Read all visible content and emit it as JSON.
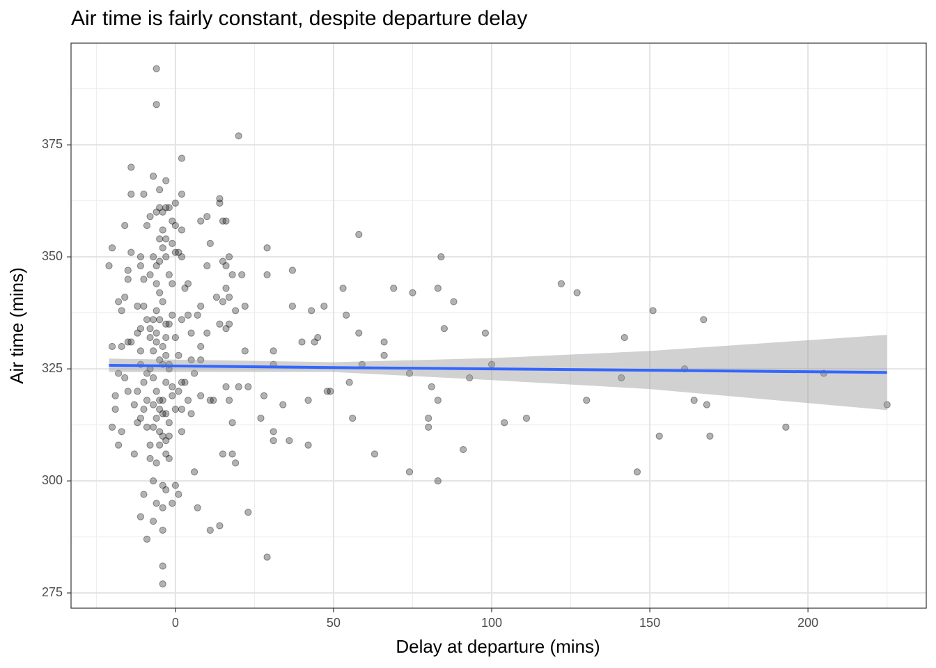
{
  "chart_data": {
    "type": "scatter",
    "title": "Air time is fairly constant, despite departure delay",
    "xlabel": "Delay at departure (mins)",
    "ylabel": "Air time (mins)",
    "color": "#000000",
    "x": [
      -6,
      -6,
      20,
      2,
      -14,
      -7,
      -3,
      -5,
      2,
      -14,
      -10,
      14,
      14,
      0,
      -5,
      -3,
      -4,
      -6,
      -2,
      15,
      16,
      8,
      10,
      -8,
      -1,
      0,
      2,
      -4,
      -16,
      -9,
      58,
      -5,
      -3,
      -4,
      -1,
      0,
      1,
      -20,
      29,
      11,
      -14,
      -7,
      -3,
      2,
      -11,
      -21,
      -5,
      17,
      15,
      16,
      10,
      -11,
      84,
      37,
      -15,
      18,
      29,
      21,
      -8,
      -15,
      -10,
      -6,
      -1,
      4,
      3,
      16,
      53,
      69,
      83,
      75,
      127,
      122,
      17,
      13,
      -16,
      -18,
      88,
      15,
      22,
      37,
      47,
      -12,
      8,
      19,
      43,
      151,
      -17,
      -1,
      54,
      4,
      7,
      -5,
      -9,
      2,
      167,
      -2,
      14,
      16,
      17,
      85,
      5,
      10,
      58,
      98,
      -12,
      -11,
      -6,
      142,
      45,
      -3,
      -8,
      44,
      -15,
      -14,
      40,
      66,
      -20,
      -17,
      8,
      22,
      31,
      -11,
      66,
      1,
      5,
      8,
      31,
      59,
      100,
      -4,
      -11,
      -2,
      161,
      -18,
      74,
      205,
      6,
      -16,
      93,
      141,
      -7,
      2,
      -10,
      55,
      -3,
      20,
      23,
      81,
      16,
      -1,
      -15,
      48,
      49,
      8,
      -19,
      28,
      -5,
      -9,
      11,
      42,
      83,
      130,
      164,
      12,
      17,
      34,
      -13,
      -7,
      168,
      225,
      -19,
      2,
      -4,
      27,
      56,
      80,
      111,
      104,
      18,
      -12,
      -20,
      193,
      80,
      -9,
      31,
      -17,
      -5,
      153,
      169,
      36,
      31,
      -18,
      42,
      -3,
      91,
      -13,
      15,
      63,
      -8,
      18,
      19,
      -2,
      6,
      74,
      146,
      83,
      -7,
      0,
      -4,
      -3,
      1,
      -10,
      -6,
      -1,
      7,
      -4,
      -11,
      -7,
      14,
      11,
      -4,
      23,
      -9,
      29,
      -4,
      -4,
      -6,
      -4,
      -5,
      -3,
      -6,
      -2,
      -7,
      -4,
      -5,
      -3,
      -6,
      -8,
      -5,
      -3,
      -7,
      -4,
      -6,
      -2,
      -9,
      -1,
      0,
      1,
      3,
      -12,
      -10,
      -11,
      4,
      5,
      -8,
      -2,
      2,
      -6,
      -4,
      -5,
      -7,
      -3,
      -8,
      0,
      -10,
      -2,
      -6
    ],
    "y": [
      392,
      384,
      377,
      372,
      370,
      368,
      367,
      365,
      364,
      364,
      364,
      363,
      362,
      362,
      361,
      361,
      360,
      360,
      361,
      358,
      358,
      358,
      359,
      359,
      358,
      357,
      356,
      356,
      357,
      357,
      355,
      354,
      354,
      352,
      353,
      351,
      351,
      352,
      352,
      353,
      351,
      350,
      350,
      350,
      350,
      348,
      349,
      350,
      349,
      348,
      348,
      348,
      350,
      347,
      347,
      346,
      346,
      346,
      346,
      345,
      345,
      344,
      344,
      344,
      343,
      343,
      343,
      343,
      343,
      342,
      342,
      344,
      341,
      341,
      341,
      340,
      340,
      340,
      339,
      339,
      339,
      339,
      339,
      338,
      338,
      338,
      338,
      337,
      337,
      337,
      337,
      336,
      336,
      336,
      336,
      335,
      335,
      334,
      335,
      334,
      333,
      333,
      333,
      333,
      333,
      334,
      333,
      332,
      332,
      332,
      332,
      331,
      331,
      331,
      331,
      331,
      330,
      330,
      330,
      329,
      329,
      329,
      328,
      328,
      327,
      327,
      326,
      326,
      326,
      326,
      326,
      325,
      325,
      324,
      324,
      324,
      324,
      323,
      323,
      323,
      323,
      322,
      322,
      322,
      322,
      321,
      321,
      321,
      321,
      321,
      320,
      320,
      320,
      319,
      319,
      319,
      318,
      318,
      318,
      318,
      318,
      318,
      318,
      318,
      318,
      317,
      317,
      317,
      317,
      317,
      316,
      316,
      315,
      314,
      314,
      314,
      314,
      313,
      313,
      313,
      312,
      312,
      312,
      312,
      311,
      311,
      311,
      310,
      310,
      309,
      309,
      308,
      308,
      309,
      307,
      306,
      306,
      306,
      305,
      306,
      304,
      305,
      302,
      302,
      302,
      300,
      300,
      299,
      299,
      298,
      297,
      297,
      295,
      295,
      294,
      294,
      292,
      291,
      290,
      289,
      289,
      293,
      287,
      283,
      281,
      277,
      320,
      318,
      316,
      315,
      314,
      313,
      312,
      310,
      308,
      306,
      304,
      325,
      327,
      328,
      329,
      330,
      331,
      326,
      324,
      319,
      316,
      320,
      322,
      320,
      316,
      314,
      318,
      315,
      308,
      310,
      311,
      338,
      340,
      342,
      336,
      335,
      334,
      332,
      339,
      346,
      348
    ],
    "smooth": {
      "color": "#3366ff",
      "fill": "#999999",
      "x": [
        -21,
        50,
        100,
        150,
        225
      ],
      "y": [
        325.8,
        325.3,
        325.0,
        324.7,
        324.2
      ],
      "lower": [
        324.3,
        324.3,
        322.5,
        320.5,
        315.8
      ],
      "upper": [
        327.3,
        326.5,
        327.4,
        329.0,
        332.6
      ]
    },
    "xlim": [
      -33,
      237.4
    ],
    "ylim": [
      271.6,
      397.7
    ],
    "xticks": [
      0,
      50,
      100,
      150,
      200
    ],
    "yticks": [
      275,
      300,
      325,
      350,
      375
    ],
    "xminorticks": [
      -25,
      25,
      75,
      125,
      175,
      225
    ],
    "yminorticks": [
      287.5,
      312.5,
      337.5,
      362.5,
      387.5
    ],
    "grid": true
  }
}
